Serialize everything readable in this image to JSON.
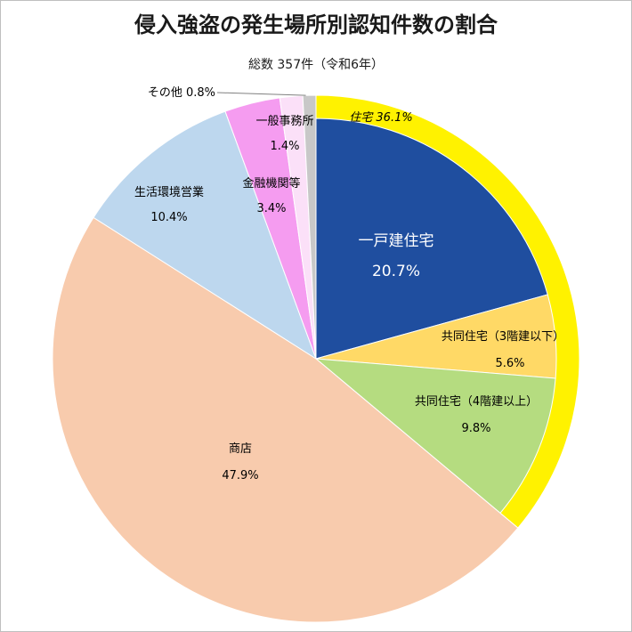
{
  "chart_data": {
    "type": "pie",
    "title": "侵入強盗の発生場所別認知件数の割合",
    "subtitle": "総数 357件（令和6年）",
    "slices": [
      {
        "label": "一戸建住宅",
        "value_text": "20.7%",
        "value": 20.7,
        "color": "#1f4e9f",
        "text_color": "#ffffff"
      },
      {
        "label": "共同住宅（3階建以下）",
        "value_text": "5.6%",
        "value": 5.6,
        "color": "#ffd966",
        "text_color": "#000000"
      },
      {
        "label": "共同住宅（4階建以上）",
        "value_text": "9.8%",
        "value": 9.8,
        "color": "#b5dc80",
        "text_color": "#000000"
      },
      {
        "label": "商店",
        "value_text": "47.9%",
        "value": 47.9,
        "color": "#f8cbad",
        "text_color": "#000000"
      },
      {
        "label": "生活環境営業",
        "value_text": "10.4%",
        "value": 10.4,
        "color": "#bdd7ee",
        "text_color": "#000000"
      },
      {
        "label": "金融機関等",
        "value_text": "3.4%",
        "value": 3.4,
        "color": "#f59cf0",
        "text_color": "#000000"
      },
      {
        "label": "一般事務所",
        "value_text": "1.4%",
        "value": 1.4,
        "color": "#fbe0f8",
        "text_color": "#000000"
      },
      {
        "label": "その他",
        "value_text": "0.8%",
        "value": 0.8,
        "color": "#c8c8c8",
        "text_color": "#000000"
      }
    ],
    "group": {
      "label": "住宅",
      "value_text": "36.1%",
      "value": 36.1,
      "color": "#fff200"
    }
  }
}
